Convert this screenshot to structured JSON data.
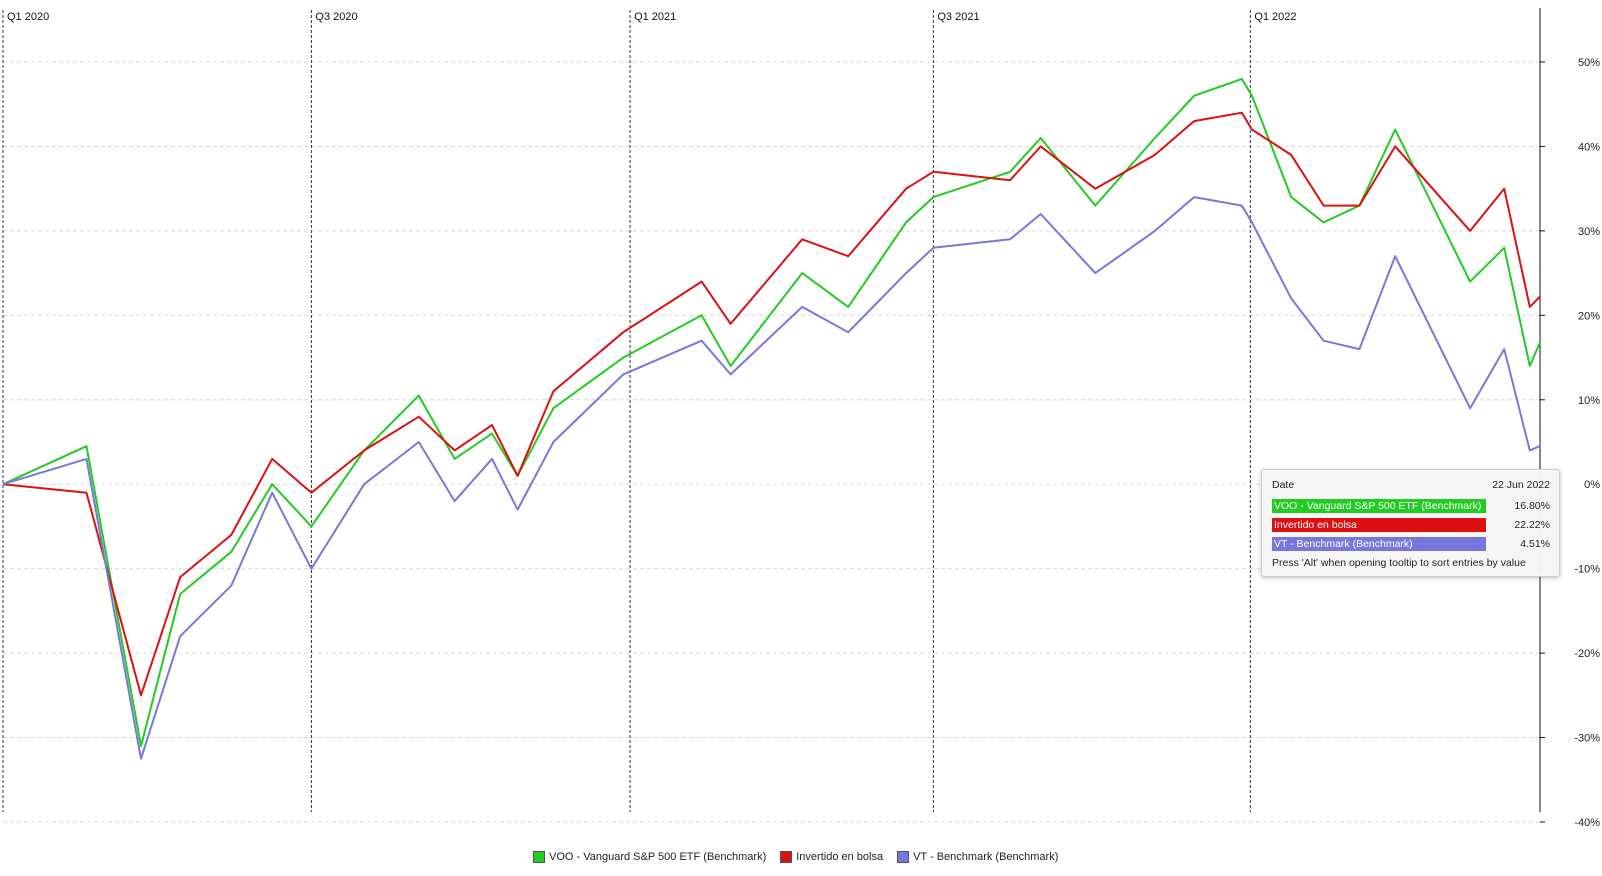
{
  "chart_data": {
    "type": "line",
    "x_quarter_labels": [
      "Q1 2020",
      "Q3 2020",
      "Q1 2021",
      "Q3 2021",
      "Q1 2022"
    ],
    "y_ticks": [
      "50%",
      "40%",
      "30%",
      "20%",
      "10%",
      "0%",
      "-10%",
      "-20%",
      "-30%",
      "-40%"
    ],
    "ylim": [
      -40,
      50
    ],
    "y_unit": "%",
    "grid": true,
    "legend_position": "bottom",
    "x": [
      "2020-01-02",
      "2020-02-20",
      "2020-03-23",
      "2020-04-15",
      "2020-05-15",
      "2020-06-08",
      "2020-07-01",
      "2020-08-01",
      "2020-09-02",
      "2020-09-23",
      "2020-10-15",
      "2020-10-30",
      "2020-11-20",
      "2020-12-31",
      "2021-02-15",
      "2021-03-04",
      "2021-04-15",
      "2021-05-12",
      "2021-06-15",
      "2021-07-01",
      "2021-08-15",
      "2021-09-02",
      "2021-10-04",
      "2021-11-08",
      "2021-12-01",
      "2021-12-29",
      "2022-01-04",
      "2022-01-27",
      "2022-02-15",
      "2022-03-08",
      "2022-03-29",
      "2022-05-12",
      "2022-06-01",
      "2022-06-16",
      "2022-06-22"
    ],
    "series": [
      {
        "name": "VOO - Vanguard S&P 500 ETF (Benchmark)",
        "color": "#22cc22",
        "values": [
          0,
          4.5,
          -31,
          -13,
          -8,
          0,
          -5,
          4,
          10.5,
          3,
          6,
          1,
          9,
          15,
          20,
          14,
          25,
          21,
          31,
          34,
          37,
          41,
          33,
          41,
          46,
          48,
          46,
          34,
          31,
          33,
          42,
          24,
          28,
          14,
          16.8
        ]
      },
      {
        "name": "Invertido en bolsa",
        "color": "#dd1111",
        "values": [
          0,
          -1,
          -25,
          -11,
          -6,
          3,
          -1,
          4,
          8,
          4,
          7,
          1,
          11,
          18,
          24,
          19,
          29,
          27,
          35,
          37,
          36,
          40,
          35,
          39,
          43,
          44,
          42,
          39,
          33,
          33,
          40,
          30,
          35,
          21,
          22.22
        ]
      },
      {
        "name": "VT - Benchmark (Benchmark)",
        "color": "#7777dd",
        "values": [
          0,
          3,
          -32.5,
          -18,
          -12,
          -1,
          -10,
          0,
          5,
          -2,
          3,
          -3,
          5,
          13,
          17,
          13,
          21,
          18,
          25,
          28,
          29,
          32,
          25,
          30,
          34,
          33,
          31,
          22,
          17,
          16,
          27,
          9,
          16,
          4,
          4.51
        ]
      }
    ]
  },
  "tooltip": {
    "date_label": "Date",
    "date_value": "22 Jun 2022",
    "items": [
      {
        "name": "VOO - Vanguard S&P 500 ETF (Benchmark)",
        "value": "16.80%",
        "color": "#22cc22"
      },
      {
        "name": "Invertido en bolsa",
        "value": "22.22%",
        "color": "#dd1111"
      },
      {
        "name": "VT - Benchmark (Benchmark)",
        "value": "4.51%",
        "color": "#7777dd"
      }
    ],
    "hint": "Press 'Alt' when opening tooltip to sort entries by value"
  },
  "legend": {
    "items": [
      {
        "label": "VOO - Vanguard S&P 500 ETF (Benchmark)",
        "color": "#22cc22"
      },
      {
        "label": "Invertido en bolsa",
        "color": "#dd1111"
      },
      {
        "label": "VT - Benchmark (Benchmark)",
        "color": "#7777dd"
      }
    ]
  }
}
